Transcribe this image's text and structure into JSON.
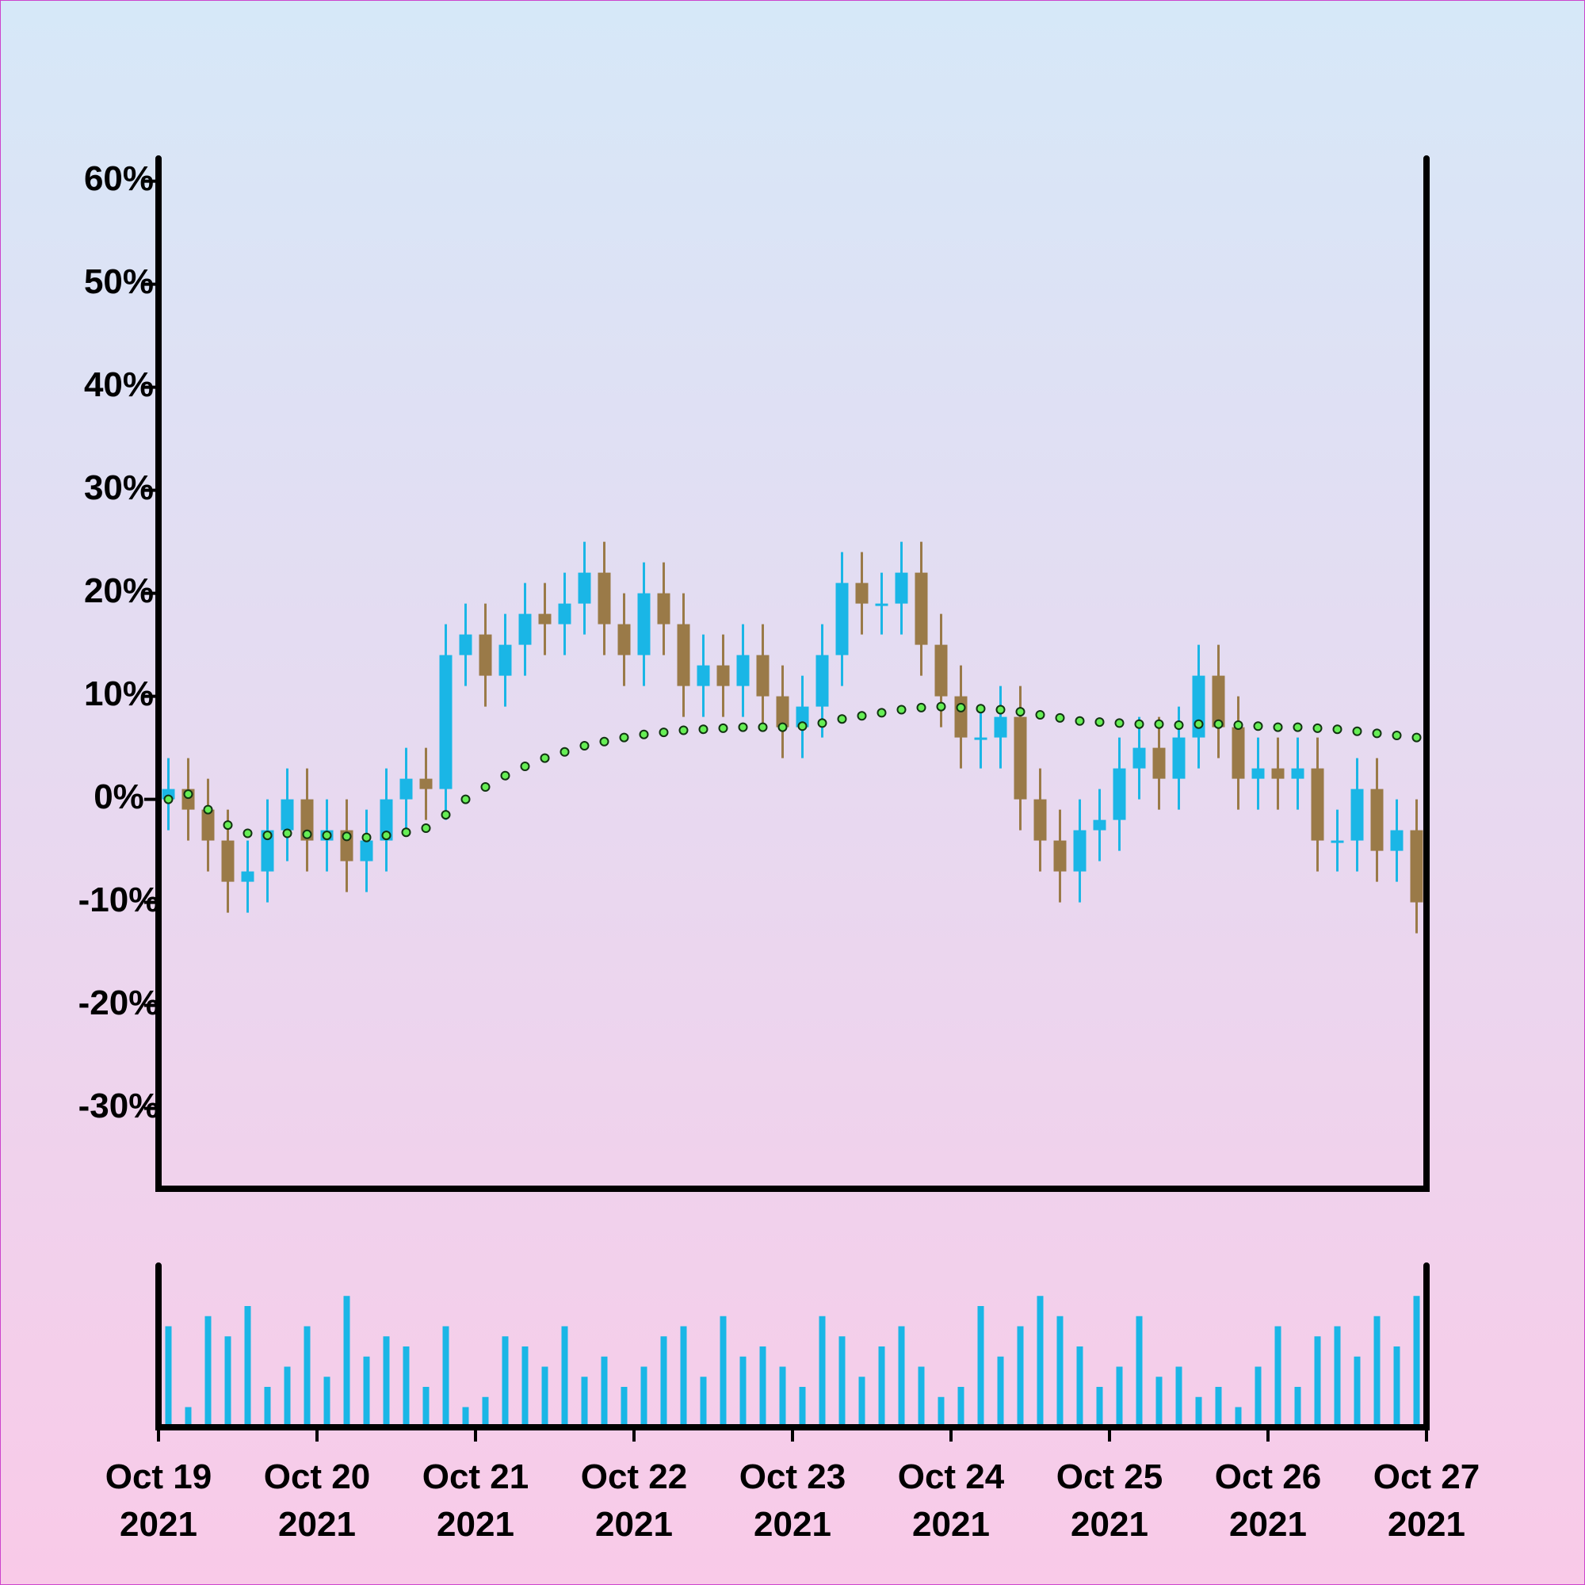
{
  "chart_data": {
    "type": "candlestick",
    "x": [
      "2021-10-19T01:30",
      "2021-10-19T04:30",
      "2021-10-19T07:30",
      "2021-10-19T10:30",
      "2021-10-19T13:30",
      "2021-10-19T16:30",
      "2021-10-19T19:30",
      "2021-10-19T22:30",
      "2021-10-20T01:30",
      "2021-10-20T04:30",
      "2021-10-20T07:30",
      "2021-10-20T10:30",
      "2021-10-20T13:30",
      "2021-10-20T16:30",
      "2021-10-20T19:30",
      "2021-10-20T22:30",
      "2021-10-21T01:30",
      "2021-10-21T04:30",
      "2021-10-21T07:30",
      "2021-10-21T10:30",
      "2021-10-21T13:30",
      "2021-10-21T16:30",
      "2021-10-21T19:30",
      "2021-10-21T22:30",
      "2021-10-22T01:30",
      "2021-10-22T04:30",
      "2021-10-22T07:30",
      "2021-10-22T10:30",
      "2021-10-22T13:30",
      "2021-10-22T16:30",
      "2021-10-22T19:30",
      "2021-10-22T22:30",
      "2021-10-23T01:30",
      "2021-10-23T04:30",
      "2021-10-23T07:30",
      "2021-10-23T10:30",
      "2021-10-23T13:30",
      "2021-10-23T16:30",
      "2021-10-23T19:30",
      "2021-10-23T22:30",
      "2021-10-24T01:30",
      "2021-10-24T04:30",
      "2021-10-24T07:30",
      "2021-10-24T10:30",
      "2021-10-24T13:30",
      "2021-10-24T16:30",
      "2021-10-24T19:30",
      "2021-10-24T22:30",
      "2021-10-25T01:30",
      "2021-10-25T04:30",
      "2021-10-25T07:30",
      "2021-10-25T10:30",
      "2021-10-25T13:30",
      "2021-10-25T16:30",
      "2021-10-25T19:30",
      "2021-10-25T22:30",
      "2021-10-26T01:30",
      "2021-10-26T04:30",
      "2021-10-26T07:30",
      "2021-10-26T10:30",
      "2021-10-26T13:30",
      "2021-10-26T16:30",
      "2021-10-26T19:30",
      "2021-10-26T22:30"
    ],
    "open": [
      0,
      1,
      -1,
      -4,
      -8,
      -7,
      -3,
      0,
      -4,
      -3,
      -6,
      -4,
      0,
      2,
      1,
      14,
      16,
      12,
      15,
      18,
      17,
      19,
      22,
      17,
      14,
      20,
      17,
      11,
      13,
      11,
      14,
      10,
      7,
      9,
      14,
      21,
      19,
      19,
      22,
      15,
      10,
      6,
      6,
      8,
      0,
      -4,
      -7,
      -3,
      -2,
      3,
      5,
      2,
      6,
      12,
      7,
      2,
      3,
      2,
      3,
      -4,
      -4,
      1,
      -5,
      -3
    ],
    "high": [
      4,
      4,
      2,
      -1,
      -4,
      0,
      3,
      3,
      0,
      0,
      -1,
      3,
      5,
      5,
      17,
      19,
      19,
      18,
      21,
      21,
      22,
      25,
      25,
      20,
      23,
      23,
      20,
      16,
      16,
      17,
      17,
      13,
      12,
      17,
      24,
      24,
      22,
      25,
      25,
      18,
      13,
      9,
      11,
      11,
      3,
      -1,
      0,
      1,
      6,
      8,
      8,
      9,
      15,
      15,
      10,
      6,
      6,
      6,
      6,
      -1,
      4,
      4,
      0,
      0
    ],
    "low": [
      -3,
      -4,
      -7,
      -11,
      -11,
      -10,
      -6,
      -7,
      -7,
      -9,
      -9,
      -7,
      -3,
      -2,
      -2,
      11,
      9,
      9,
      12,
      14,
      14,
      16,
      14,
      11,
      11,
      14,
      8,
      8,
      8,
      8,
      7,
      4,
      4,
      6,
      11,
      16,
      16,
      16,
      12,
      7,
      3,
      3,
      3,
      -3,
      -7,
      -10,
      -10,
      -6,
      -5,
      0,
      -1,
      -1,
      3,
      4,
      -1,
      -1,
      -1,
      -1,
      -7,
      -7,
      -7,
      -8,
      -8,
      -13
    ],
    "close": [
      1,
      -1,
      -4,
      -8,
      -7,
      -3,
      0,
      -4,
      -3,
      -6,
      -4,
      0,
      2,
      1,
      14,
      16,
      12,
      15,
      18,
      17,
      19,
      22,
      17,
      14,
      20,
      17,
      11,
      13,
      11,
      14,
      10,
      7,
      9,
      14,
      21,
      19,
      19,
      22,
      15,
      10,
      6,
      6,
      8,
      0,
      -4,
      -7,
      -3,
      -2,
      3,
      5,
      2,
      6,
      12,
      7,
      2,
      3,
      2,
      3,
      -4,
      -4,
      1,
      -5,
      -3,
      -10
    ],
    "moving_average": {
      "color": "#66ee55",
      "values": [
        0,
        0.5,
        -1,
        -2.5,
        -3.3,
        -3.5,
        -3.3,
        -3.4,
        -3.5,
        -3.6,
        -3.7,
        -3.5,
        -3.2,
        -2.8,
        -1.5,
        0,
        1.2,
        2.3,
        3.2,
        4,
        4.6,
        5.2,
        5.6,
        6,
        6.3,
        6.5,
        6.7,
        6.8,
        6.9,
        7,
        7,
        7,
        7.1,
        7.4,
        7.8,
        8.1,
        8.4,
        8.7,
        8.9,
        9,
        8.9,
        8.8,
        8.7,
        8.5,
        8.2,
        7.9,
        7.6,
        7.5,
        7.4,
        7.3,
        7.3,
        7.2,
        7.3,
        7.3,
        7.2,
        7.1,
        7,
        7,
        6.9,
        6.8,
        6.6,
        6.4,
        6.2,
        6
      ]
    },
    "volume": {
      "color": "#1ab6e6",
      "ylim": [
        0,
        160
      ],
      "values": [
        100,
        20,
        110,
        90,
        120,
        40,
        60,
        100,
        50,
        130,
        70,
        90,
        80,
        40,
        100,
        20,
        30,
        90,
        80,
        60,
        100,
        50,
        70,
        40,
        60,
        90,
        100,
        50,
        110,
        70,
        80,
        60,
        40,
        110,
        90,
        50,
        80,
        100,
        60,
        30,
        40,
        120,
        70,
        100,
        130,
        110,
        80,
        40,
        60,
        110,
        50,
        60,
        30,
        40,
        20,
        60,
        100,
        40,
        90,
        100,
        70,
        110,
        80,
        130
      ]
    },
    "up_color": "#1ab6e6",
    "down_color": "#9a7a48",
    "xlim": [
      "2021-10-19T00:00",
      "2021-10-27T00:00"
    ],
    "xticks": [
      {
        "value": "2021-10-19T00:00",
        "label": "Oct 19\n2021"
      },
      {
        "value": "2021-10-20T00:00",
        "label": "Oct 20\n2021"
      },
      {
        "value": "2021-10-21T00:00",
        "label": "Oct 21\n2021"
      },
      {
        "value": "2021-10-22T00:00",
        "label": "Oct 22\n2021"
      },
      {
        "value": "2021-10-23T00:00",
        "label": "Oct 23\n2021"
      },
      {
        "value": "2021-10-24T00:00",
        "label": "Oct 24\n2021"
      },
      {
        "value": "2021-10-25T00:00",
        "label": "Oct 25\n2021"
      },
      {
        "value": "2021-10-26T00:00",
        "label": "Oct 26\n2021"
      },
      {
        "value": "2021-10-27T00:00",
        "label": "Oct 27\n2021"
      }
    ],
    "ylim": [
      -37.8,
      62.2
    ],
    "yticks": [
      {
        "value": -30,
        "label": "-30%"
      },
      {
        "value": -20,
        "label": "-20%"
      },
      {
        "value": -10,
        "label": "-10%"
      },
      {
        "value": 0,
        "label": "0%"
      },
      {
        "value": 10,
        "label": "10%"
      },
      {
        "value": 20,
        "label": "20%"
      },
      {
        "value": 30,
        "label": "30%"
      },
      {
        "value": 40,
        "label": "40%"
      },
      {
        "value": 50,
        "label": "50%"
      },
      {
        "value": 60,
        "label": "60%"
      }
    ]
  }
}
